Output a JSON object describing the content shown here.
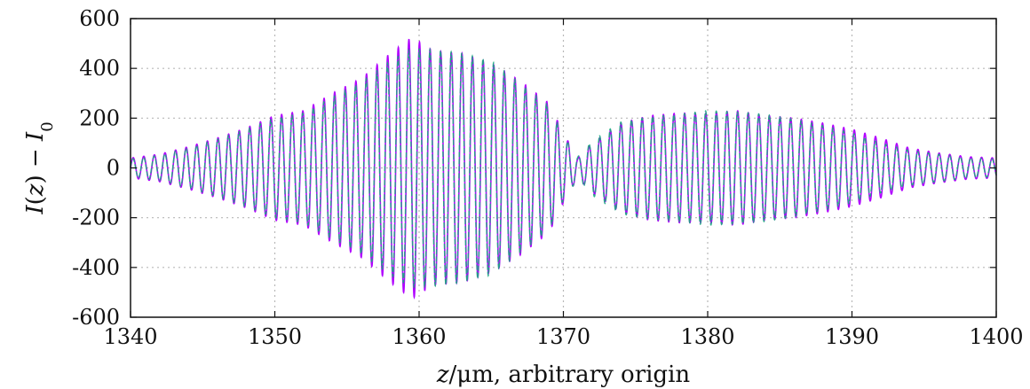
{
  "chart_data": {
    "type": "line",
    "title": "",
    "xlabel": "z/μm, arbitrary origin",
    "xlabel_parts": {
      "var": "z",
      "rest": "/μm, arbitrary origin"
    },
    "ylabel": "I(z) − I0",
    "ylabel_parts": {
      "a": "I",
      "b": "(",
      "c": "z",
      "d": ") − ",
      "e": "I",
      "f": "0"
    },
    "xlim": [
      1340,
      1400
    ],
    "ylim": [
      -600,
      600
    ],
    "x_ticks": [
      1340,
      1350,
      1360,
      1370,
      1380,
      1390,
      1400
    ],
    "x_tick_labels": [
      "1340",
      "1350",
      "1360",
      "1370",
      "1380",
      "1390",
      "1400"
    ],
    "y_ticks": [
      600,
      400,
      200,
      0,
      -200,
      -400,
      -600
    ],
    "y_tick_labels": [
      "600",
      "400",
      "200",
      "0",
      "-200",
      "-400",
      "-600"
    ],
    "grid": true,
    "oscillation_period": 0.735,
    "series": [
      {
        "color": "#b000ff",
        "envelope": {
          "x": [
            1340,
            1342,
            1344,
            1346,
            1348,
            1350,
            1352,
            1354,
            1356,
            1358,
            1359.5,
            1361,
            1363,
            1365,
            1367,
            1369,
            1370,
            1371,
            1372,
            1374,
            1376,
            1378,
            1380,
            1382,
            1384,
            1386,
            1388,
            1390,
            1392,
            1394,
            1396,
            1398,
            1400
          ],
          "y": [
            40,
            55,
            85,
            120,
            160,
            210,
            230,
            300,
            360,
            460,
            525,
            470,
            460,
            420,
            350,
            260,
            140,
            40,
            100,
            180,
            210,
            220,
            220,
            230,
            210,
            200,
            180,
            155,
            120,
            80,
            60,
            45,
            40
          ]
        }
      },
      {
        "color": "#1aa87f",
        "envelope": {
          "x": [
            1340,
            1342,
            1344,
            1346,
            1348,
            1350,
            1352,
            1354,
            1356,
            1358,
            1359.5,
            1361,
            1363,
            1365,
            1367,
            1369,
            1370,
            1371,
            1372,
            1374,
            1376,
            1378,
            1380,
            1382,
            1384,
            1386,
            1388,
            1390,
            1392,
            1394,
            1396,
            1398,
            1400
          ],
          "y": [
            35,
            50,
            80,
            115,
            155,
            200,
            220,
            285,
            345,
            430,
            480,
            475,
            460,
            430,
            340,
            250,
            130,
            45,
            110,
            185,
            205,
            215,
            230,
            225,
            215,
            195,
            170,
            140,
            100,
            70,
            55,
            40,
            35
          ]
        }
      }
    ]
  }
}
